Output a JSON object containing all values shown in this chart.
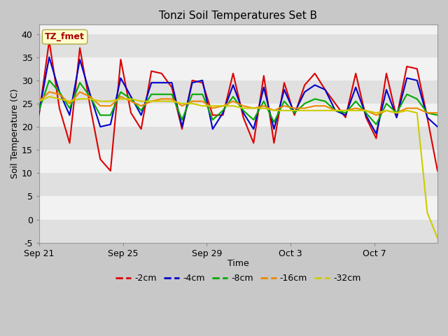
{
  "title": "Tonzi Soil Temperatures Set B",
  "xlabel": "Time",
  "ylabel": "Soil Temperature (C)",
  "ylim": [
    -5,
    42
  ],
  "yticks": [
    -5,
    0,
    5,
    10,
    15,
    20,
    25,
    30,
    35,
    40
  ],
  "xtick_labels": [
    "Sep 21",
    "Sep 25",
    "Sep 29",
    "Oct 3",
    "Oct 7"
  ],
  "xtick_day_offsets": [
    0,
    4,
    8,
    12,
    16
  ],
  "total_days": 19,
  "colors": {
    "-2cm": "#dd0000",
    "-4cm": "#0000cc",
    "-8cm": "#00aa00",
    "-16cm": "#ee8800",
    "-32cm": "#cccc00"
  },
  "legend_label": "TZ_fmet",
  "legend_bg": "#ffffcc",
  "legend_border": "#aaaa44",
  "legend_text_color": "#aa0000",
  "fig_bg": "#c8c8c8",
  "plot_bg_light": "#f2f2f2",
  "plot_bg_dark": "#e0e0e0",
  "t2cm": [
    22.5,
    38.5,
    24.0,
    16.5,
    37.0,
    24.5,
    13.0,
    10.5,
    34.5,
    23.0,
    19.5,
    32.0,
    31.5,
    28.5,
    19.5,
    30.0,
    29.5,
    22.5,
    22.5,
    31.5,
    22.0,
    16.5,
    31.0,
    16.5,
    29.5,
    22.5,
    29.0,
    31.5,
    28.0,
    25.0,
    22.0,
    31.5,
    22.0,
    17.5,
    31.5,
    22.0,
    33.0,
    32.5,
    22.0,
    10.5
  ],
  "t4cm": [
    23.0,
    35.0,
    27.5,
    22.5,
    34.5,
    27.0,
    20.0,
    20.5,
    30.5,
    26.5,
    22.5,
    29.5,
    29.5,
    29.5,
    20.0,
    29.5,
    30.0,
    19.5,
    23.0,
    29.0,
    23.0,
    19.5,
    28.5,
    19.5,
    28.0,
    23.0,
    27.5,
    29.0,
    28.0,
    23.5,
    22.5,
    28.5,
    22.5,
    18.5,
    28.0,
    22.0,
    30.5,
    30.0,
    22.0,
    20.0
  ],
  "t8cm": [
    23.5,
    30.0,
    27.5,
    24.0,
    29.5,
    26.5,
    22.5,
    22.5,
    27.5,
    26.0,
    23.5,
    27.0,
    27.0,
    27.0,
    21.5,
    27.0,
    27.0,
    21.5,
    23.5,
    26.5,
    23.5,
    21.5,
    25.5,
    21.0,
    25.5,
    23.0,
    25.0,
    26.0,
    25.5,
    23.5,
    23.0,
    25.5,
    23.0,
    20.5,
    25.0,
    23.0,
    27.0,
    26.0,
    23.0,
    22.5
  ],
  "t16cm": [
    25.5,
    27.5,
    27.0,
    25.0,
    27.5,
    26.5,
    24.5,
    24.5,
    26.5,
    25.5,
    24.5,
    25.5,
    26.0,
    26.0,
    24.5,
    25.5,
    25.5,
    24.0,
    24.5,
    25.5,
    24.5,
    24.0,
    24.5,
    23.5,
    24.5,
    24.0,
    24.0,
    24.5,
    24.5,
    23.5,
    23.5,
    24.0,
    23.5,
    22.5,
    23.5,
    23.0,
    24.0,
    24.0,
    23.0,
    23.0
  ],
  "t32cm": [
    25.5,
    26.5,
    26.0,
    25.5,
    26.0,
    26.0,
    25.5,
    25.5,
    26.0,
    26.0,
    25.5,
    25.5,
    25.5,
    25.5,
    25.0,
    25.0,
    24.5,
    24.5,
    24.5,
    24.5,
    24.0,
    24.0,
    24.0,
    23.5,
    23.5,
    23.5,
    23.5,
    23.5,
    23.5,
    23.5,
    23.5,
    23.5,
    23.5,
    23.0,
    23.5,
    23.0,
    23.5,
    23.0,
    1.5,
    -4.0
  ]
}
